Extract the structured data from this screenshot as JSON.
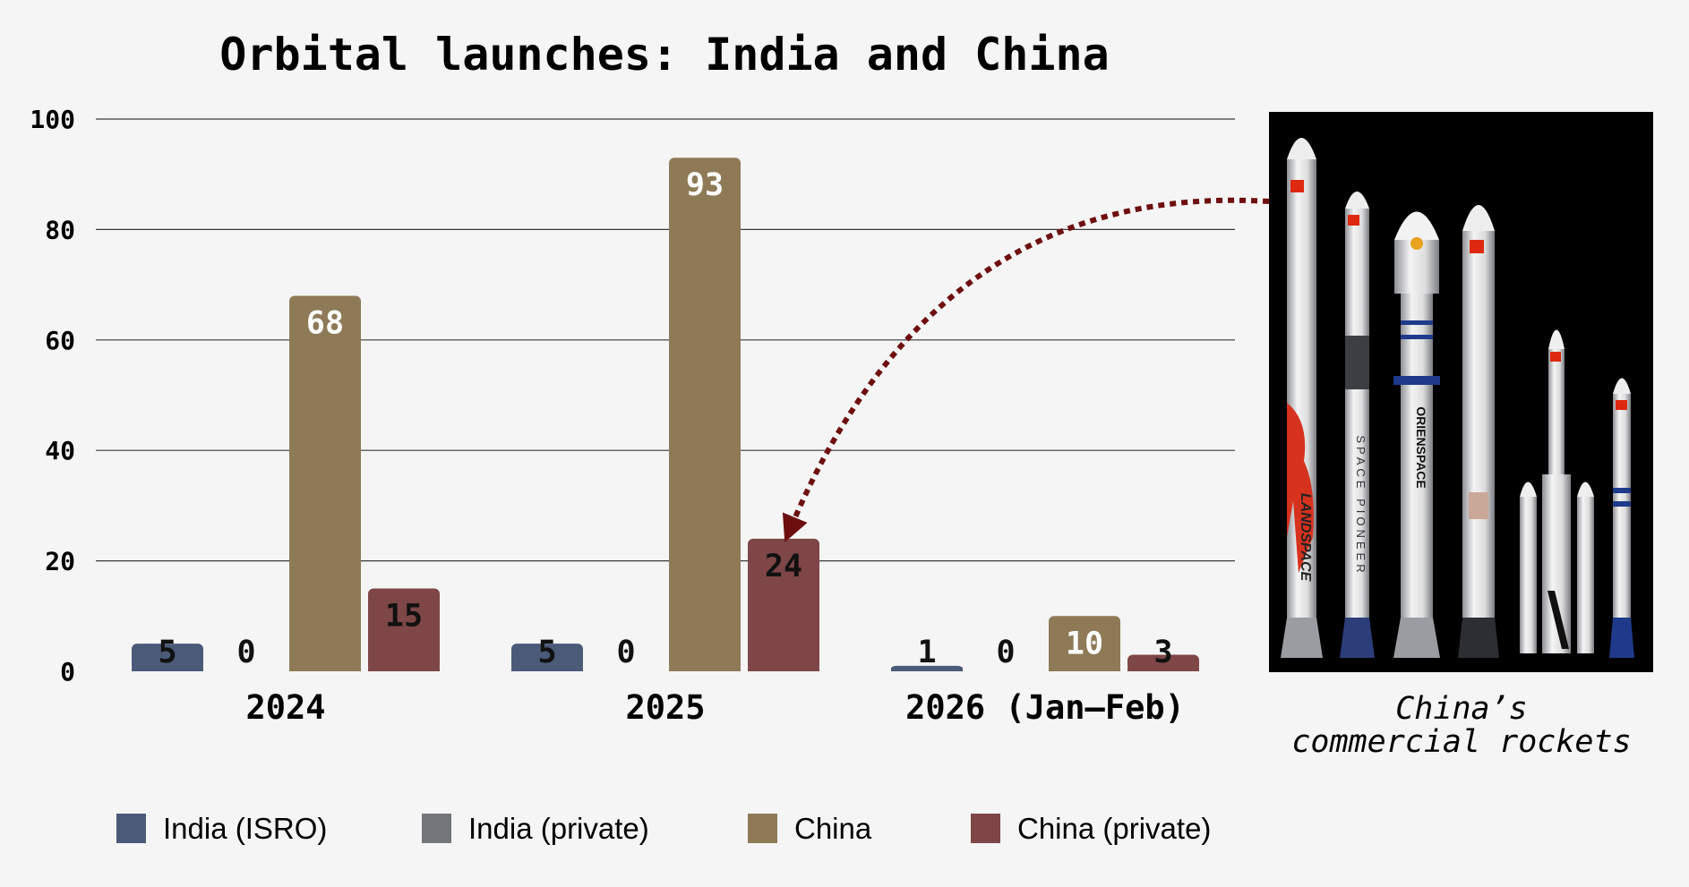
{
  "chart_data": {
    "type": "bar",
    "title": "Orbital launches: India and China",
    "categories": [
      "2024",
      "2025",
      "2026 (Jan–Feb)"
    ],
    "series": [
      {
        "name": "India (ISRO)",
        "color": "#4a5a78",
        "values": [
          5,
          5,
          1
        ]
      },
      {
        "name": "India (private)",
        "color": "#73767b",
        "values": [
          0,
          0,
          0
        ]
      },
      {
        "name": "China",
        "color": "#8f7a57",
        "values": [
          68,
          93,
          10
        ]
      },
      {
        "name": "China (private)",
        "color": "#7e4647",
        "values": [
          15,
          24,
          3
        ]
      }
    ],
    "ylim": [
      0,
      100
    ],
    "yticks": [
      0,
      20,
      40,
      60,
      80,
      100
    ],
    "grid": true,
    "legend_position": "bottom",
    "xlabel": "",
    "ylabel": ""
  },
  "image_panel": {
    "caption_lines": [
      "China’s",
      "commercial rockets"
    ],
    "background": "#000000",
    "arrow_color": "#6e0f0f",
    "rocket_markings": [
      "LANDSPACE",
      "SPACE PIONEER",
      "ORIENSPACE"
    ]
  }
}
